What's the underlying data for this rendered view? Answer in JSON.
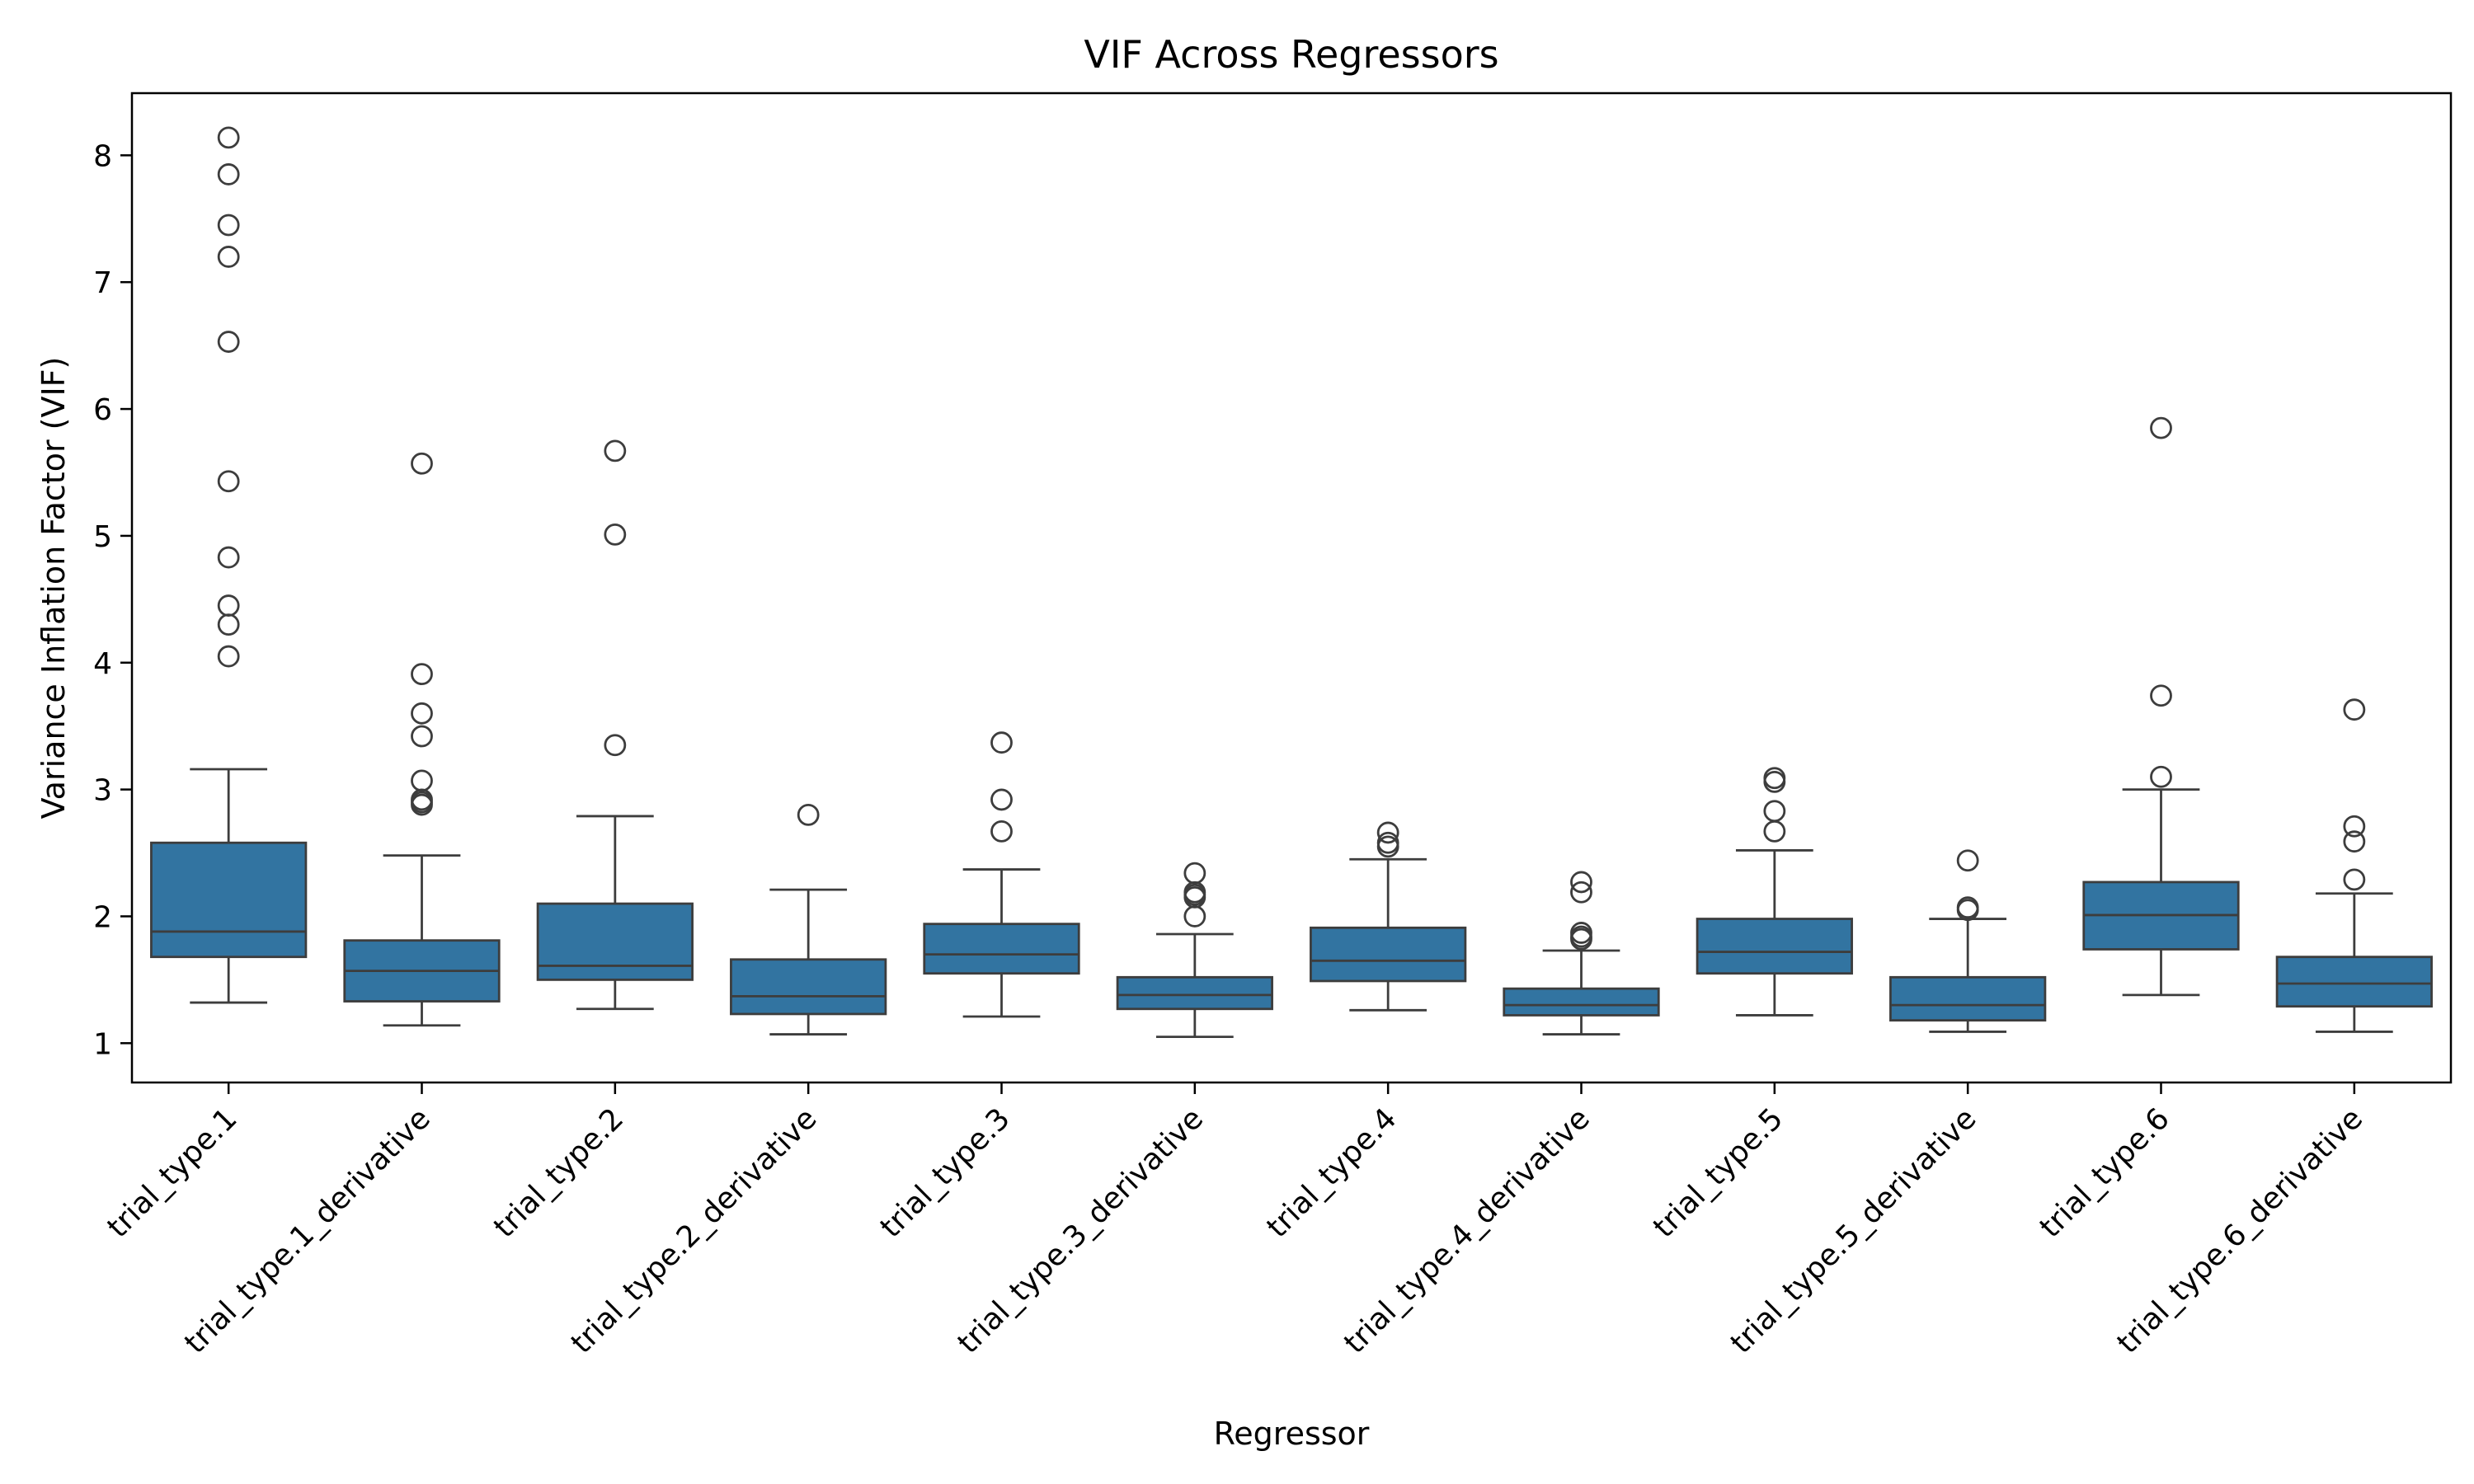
{
  "chart_data": {
    "type": "box",
    "title": "VIF Across Regressors",
    "xlabel": "Regressor",
    "ylabel": "Variance Inflation Factor (VIF)",
    "ylim": [
      0.69,
      8.49
    ],
    "yticks": [
      1,
      2,
      3,
      4,
      5,
      6,
      7,
      8
    ],
    "grid": false,
    "colors": {
      "box_fill": "#3274a1",
      "line": "#3d3d3d",
      "outlier_edge": "#3d3d3d"
    },
    "categories": [
      "trial_type.1",
      "trial_type.1_derivative",
      "trial_type.2",
      "trial_type.2_derivative",
      "trial_type.3",
      "trial_type.3_derivative",
      "trial_type.4",
      "trial_type.4_derivative",
      "trial_type.5",
      "trial_type.5_derivative",
      "trial_type.6",
      "trial_type.6_derivative"
    ],
    "boxes": [
      {
        "whislo": 1.32,
        "q1": 1.68,
        "med": 1.88,
        "q3": 2.58,
        "whishi": 3.16,
        "fliers": [
          4.05,
          4.3,
          4.45,
          4.83,
          5.43,
          6.53,
          7.2,
          7.45,
          7.85,
          8.14
        ]
      },
      {
        "whislo": 1.14,
        "q1": 1.33,
        "med": 1.57,
        "q3": 1.81,
        "whishi": 2.48,
        "fliers": [
          2.88,
          2.9,
          2.92,
          3.07,
          3.42,
          3.6,
          3.91,
          5.57
        ]
      },
      {
        "whislo": 1.27,
        "q1": 1.5,
        "med": 1.61,
        "q3": 2.1,
        "whishi": 2.79,
        "fliers": [
          3.35,
          5.01,
          5.67
        ]
      },
      {
        "whislo": 1.07,
        "q1": 1.23,
        "med": 1.37,
        "q3": 1.66,
        "whishi": 2.21,
        "fliers": [
          2.8
        ]
      },
      {
        "whislo": 1.21,
        "q1": 1.55,
        "med": 1.7,
        "q3": 1.94,
        "whishi": 2.37,
        "fliers": [
          2.67,
          2.92,
          3.37
        ]
      },
      {
        "whislo": 1.05,
        "q1": 1.27,
        "med": 1.38,
        "q3": 1.52,
        "whishi": 1.86,
        "fliers": [
          2.0,
          2.15,
          2.17,
          2.19,
          2.34
        ]
      },
      {
        "whislo": 1.26,
        "q1": 1.49,
        "med": 1.65,
        "q3": 1.91,
        "whishi": 2.45,
        "fliers": [
          2.55,
          2.58,
          2.66
        ]
      },
      {
        "whislo": 1.07,
        "q1": 1.22,
        "med": 1.3,
        "q3": 1.43,
        "whishi": 1.73,
        "fliers": [
          1.82,
          1.84,
          1.87,
          2.19,
          2.27
        ]
      },
      {
        "whislo": 1.22,
        "q1": 1.55,
        "med": 1.72,
        "q3": 1.98,
        "whishi": 2.52,
        "fliers": [
          2.67,
          2.83,
          3.06,
          3.09
        ]
      },
      {
        "whislo": 1.09,
        "q1": 1.18,
        "med": 1.3,
        "q3": 1.52,
        "whishi": 1.98,
        "fliers": [
          2.05,
          2.07,
          2.44
        ]
      },
      {
        "whislo": 1.38,
        "q1": 1.74,
        "med": 2.01,
        "q3": 2.27,
        "whishi": 3.0,
        "fliers": [
          3.1,
          3.74,
          5.85
        ]
      },
      {
        "whislo": 1.09,
        "q1": 1.29,
        "med": 1.47,
        "q3": 1.68,
        "whishi": 2.18,
        "fliers": [
          2.29,
          2.59,
          2.71,
          3.63
        ]
      }
    ]
  }
}
